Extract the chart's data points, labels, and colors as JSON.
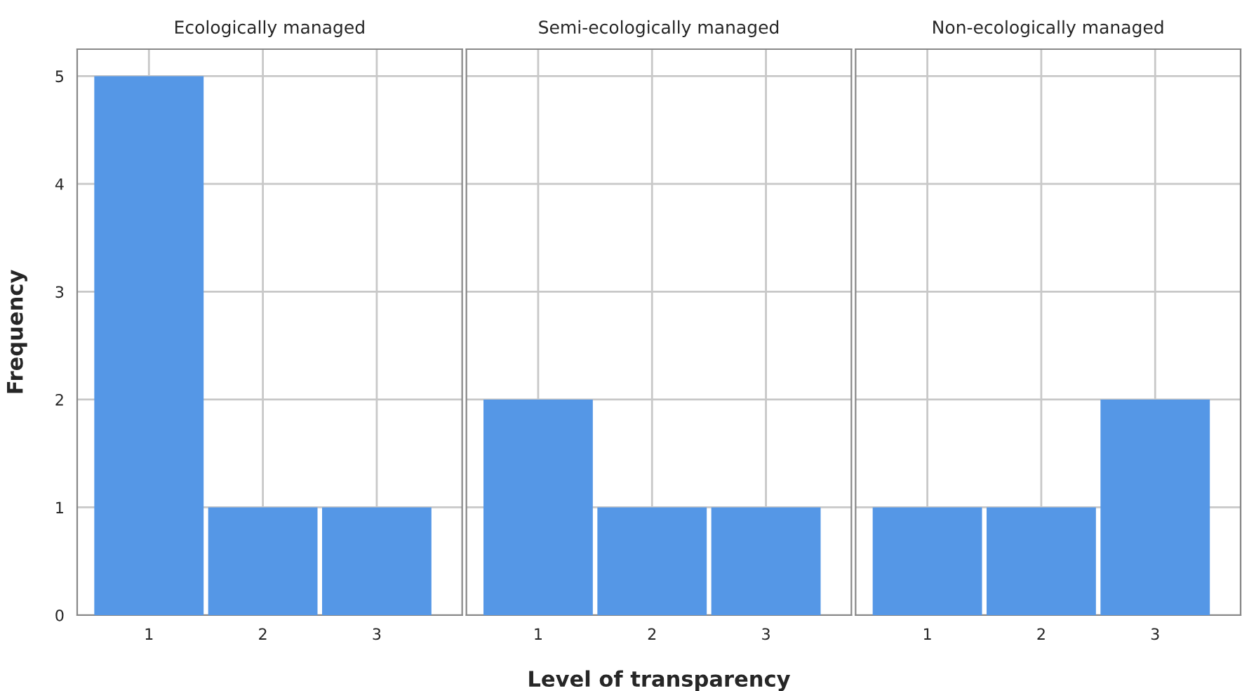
{
  "chart_data": [
    {
      "type": "bar",
      "title": "Ecologically managed",
      "ylabel": "Frequency",
      "categories": [
        "1",
        "2",
        "3"
      ],
      "values": [
        5,
        1,
        1
      ],
      "color": "#5597e6",
      "ylim": [
        0,
        5.25
      ],
      "yticks": [
        0,
        1,
        2,
        3,
        4,
        5
      ],
      "grid": true
    },
    {
      "type": "bar",
      "title": "Semi-ecologically managed",
      "xlabel": "Level of transparency",
      "categories": [
        "1",
        "2",
        "3"
      ],
      "values": [
        2,
        1,
        1
      ],
      "color": "#5597e6",
      "ylim": [
        0,
        5.25
      ],
      "yticks": [
        0,
        1,
        2,
        3,
        4,
        5
      ],
      "grid": true,
      "tick_labels": "x"
    },
    {
      "type": "bar",
      "title": "Non-ecologically managed",
      "categories": [
        "1",
        "2",
        "3"
      ],
      "values": [
        1,
        1,
        2
      ],
      "color": "#5597e6",
      "ylim": [
        0,
        5.25
      ],
      "yticks": [
        0,
        1,
        2,
        3,
        4,
        5
      ],
      "grid": true,
      "tick_labels": "x"
    }
  ]
}
